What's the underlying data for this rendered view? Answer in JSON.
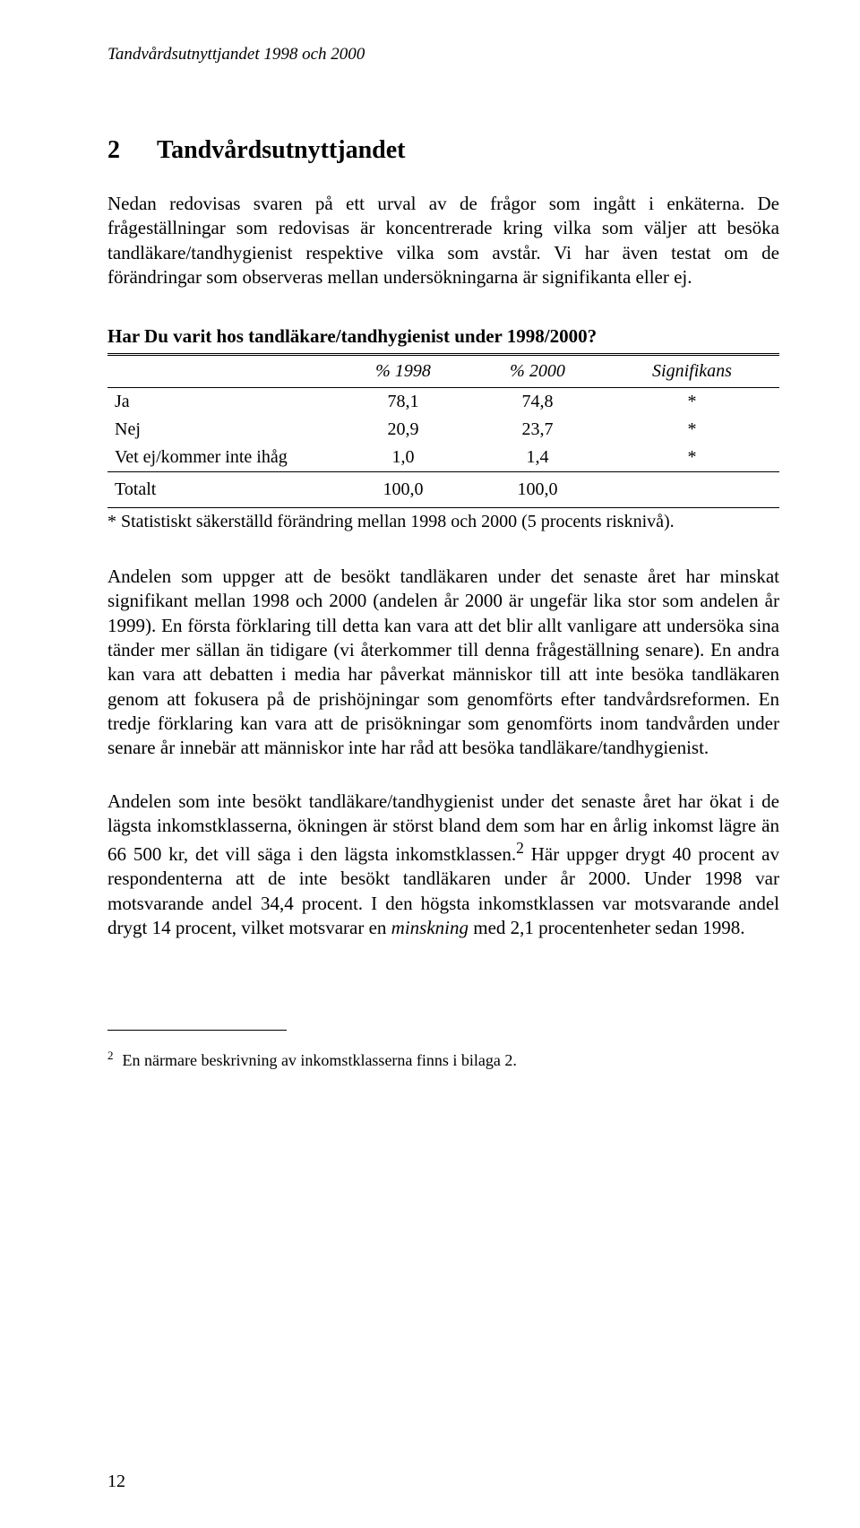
{
  "header": {
    "running_title": "Tandvårdsutnyttjandet 1998 och 2000"
  },
  "chapter": {
    "number": "2",
    "title": "Tandvårdsutnyttjandet"
  },
  "paragraphs": {
    "intro": "Nedan redovisas svaren på ett urval av de frågor som ingått i enkäterna. De frågeställningar som redovisas är koncentrerade kring vilka som väljer att besöka tandläkare/tandhygienist respektive vilka som avstår. Vi har även testat om de förändringar som observeras mellan undersökningarna är signifikanta eller ej.",
    "p2": "Andelen som uppger att de besökt tandläkaren under det senaste året har minskat signifikant mellan 1998 och 2000 (andelen år 2000 är ungefär lika stor som andelen år 1999). En första förklaring till detta kan vara att det blir allt vanligare att undersöka sina tänder mer sällan än tidigare (vi återkommer till denna frågeställning senare). En andra kan vara att debatten i media har påverkat människor till att inte besöka tandläkaren genom att fokusera på de prishöjningar som genomförts efter tandvårdsreformen. En tredje förklaring kan vara att de prisökningar som genomförts inom tandvården under senare år innebär att människor inte har råd att besöka tandläkare/tandhygienist.",
    "p3_a": "Andelen som inte besökt tandläkare/tandhygienist under det senaste året har ökat i de lägsta inkomstklasserna, ökningen är störst bland dem som har en årlig inkomst lägre än 66 500 kr, det vill säga i den lägsta inkomstklassen.",
    "p3_b": " Här uppger drygt 40 procent av respondenterna att de inte besökt tandläkaren under år 2000. Under 1998 var motsvarande andel 34,4 procent. I den högsta inkomstklassen var motsvarande andel drygt 14 procent, vilket motsvarar en ",
    "p3_minskning": "minskning",
    "p3_c": " med 2,1 procentenheter sedan 1998."
  },
  "table": {
    "title": "Har Du varit hos tandläkare/tandhygienist under 1998/2000?",
    "columns": [
      "",
      "% 1998",
      "% 2000",
      "Signifikans"
    ],
    "rows": [
      [
        "Ja",
        "78,1",
        "74,8",
        "*"
      ],
      [
        "Nej",
        "20,9",
        "23,7",
        "*"
      ],
      [
        "Vet ej/kommer inte ihåg",
        "1,0",
        "1,4",
        "*"
      ]
    ],
    "total_row": [
      "Totalt",
      "100,0",
      "100,0",
      ""
    ],
    "note": "* Statistiskt säkerställd förändring mellan 1998 och 2000 (5 procents risknivå).",
    "styling": {
      "border_color": "#000000",
      "header_font_style": "italic",
      "font_size_pt": 15,
      "column_alignment": [
        "left",
        "center",
        "center",
        "center"
      ]
    }
  },
  "footnote": {
    "marker": "2",
    "text": "En närmare beskrivning av inkomstklasserna finns i bilaga 2."
  },
  "page_number": "12",
  "styling": {
    "background_color": "#ffffff",
    "text_color": "#000000",
    "body_font_size_pt": 16,
    "heading_font_size_pt": 21,
    "font_family": "Times New Roman"
  }
}
